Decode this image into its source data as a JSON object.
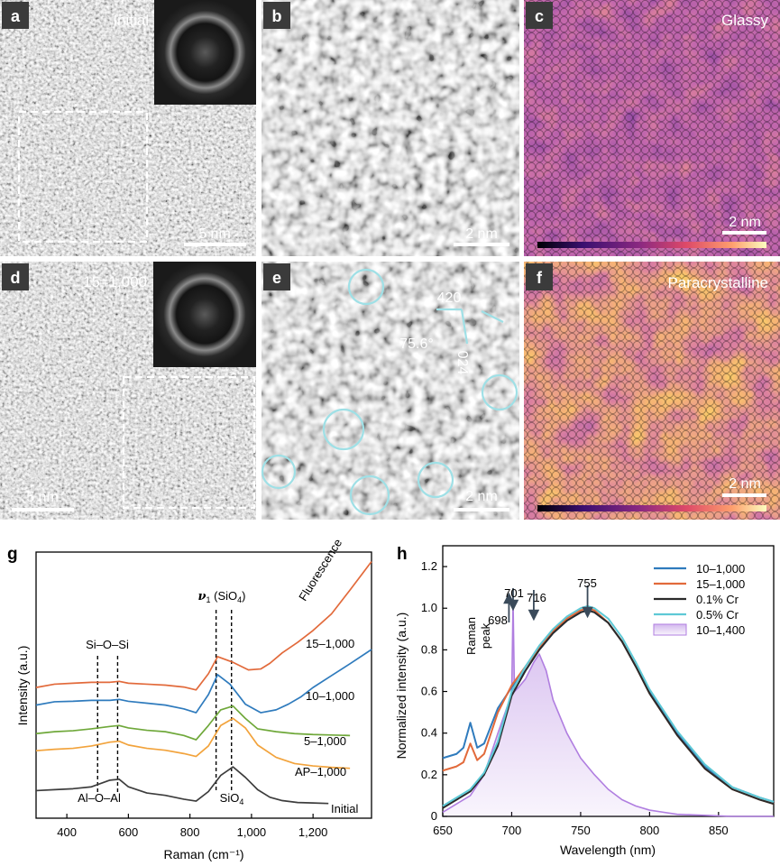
{
  "panels": {
    "a": {
      "letter": "a",
      "caption": "Initial",
      "scale": "5 nm"
    },
    "b": {
      "letter": "b",
      "scale": "2 nm"
    },
    "c": {
      "letter": "c",
      "caption": "Glassy",
      "scale": "2 nm"
    },
    "d": {
      "letter": "d",
      "caption": "15–1,000",
      "scale": "5 nm"
    },
    "e": {
      "letter": "e",
      "scale": "2 nm",
      "miller_a": "420",
      "miller_b": "024",
      "angle": "75.6°"
    },
    "f": {
      "letter": "f",
      "caption": "Paracrystalline",
      "scale": "2 nm"
    }
  },
  "colors": {
    "inferno_low": "#1a0b30",
    "inferno_mid": "#b5366a",
    "inferno_high": "#f6e65a",
    "cyan_circle": "#9fe0e6"
  },
  "chart_data": [
    {
      "panel": "g",
      "type": "line",
      "xlabel": "Raman (cm⁻¹)",
      "ylabel": "Intensity (a.u.)",
      "xlim": [
        300,
        1390
      ],
      "xticks": [
        400,
        600,
        800,
        1000,
        1200
      ],
      "xtick_labels": [
        "400",
        "600",
        "800",
        "1,000",
        "1,200"
      ],
      "annotations": {
        "si_o_si": "Si–O–Si",
        "al_o_al": "Al–O–Al",
        "v1_nu": "ν",
        "v1_sub": "1",
        "v1_rest": " (SiO",
        "v1_sub4": "4",
        "v1_close": ")",
        "sio4_main": "SiO",
        "sio4_sub": "4",
        "fluorescence": "Fluorescence"
      },
      "dashed_lines_x": [
        500,
        565,
        885,
        935
      ],
      "series": [
        {
          "name": "Initial",
          "color": "#3d3d3d",
          "x": [
            300,
            360,
            420,
            480,
            540,
            570,
            600,
            660,
            720,
            780,
            820,
            860,
            900,
            940,
            980,
            1020,
            1060,
            1100,
            1150,
            1200,
            1250
          ],
          "y": [
            0.58,
            0.6,
            0.62,
            0.66,
            0.8,
            0.82,
            0.66,
            0.53,
            0.48,
            0.4,
            0.36,
            0.56,
            0.9,
            1.08,
            0.86,
            0.6,
            0.44,
            0.37,
            0.33,
            0.32,
            0.31
          ]
        },
        {
          "name": "AP–1,000",
          "color": "#f2a33c",
          "x": [
            300,
            360,
            420,
            480,
            540,
            570,
            600,
            660,
            720,
            780,
            820,
            860,
            900,
            940,
            980,
            1020,
            1080,
            1140,
            1200,
            1260,
            1320
          ],
          "y": [
            1.42,
            1.45,
            1.47,
            1.52,
            1.6,
            1.62,
            1.54,
            1.47,
            1.43,
            1.36,
            1.3,
            1.52,
            1.95,
            2.1,
            1.9,
            1.54,
            1.28,
            1.15,
            1.1,
            1.07,
            1.05
          ]
        },
        {
          "name": "5–1,000",
          "color": "#6fa83a",
          "x": [
            300,
            360,
            420,
            480,
            540,
            570,
            600,
            660,
            720,
            780,
            820,
            860,
            900,
            940,
            980,
            1020,
            1080,
            1140,
            1200,
            1260,
            1320
          ],
          "y": [
            1.78,
            1.82,
            1.84,
            1.88,
            1.93,
            1.95,
            1.9,
            1.85,
            1.82,
            1.74,
            1.65,
            1.95,
            2.28,
            2.36,
            2.1,
            1.88,
            1.82,
            1.78,
            1.76,
            1.75,
            1.74
          ]
        },
        {
          "name": "10–1,000",
          "color": "#2f7bbd",
          "x": [
            300,
            360,
            420,
            480,
            540,
            570,
            600,
            660,
            720,
            780,
            820,
            860,
            890,
            930,
            980,
            1030,
            1080,
            1120,
            1160,
            1200,
            1260,
            1320,
            1390
          ],
          "y": [
            2.38,
            2.45,
            2.46,
            2.48,
            2.48,
            2.5,
            2.46,
            2.42,
            2.38,
            2.3,
            2.22,
            2.6,
            3.02,
            2.82,
            2.4,
            2.22,
            2.28,
            2.4,
            2.55,
            2.75,
            3.0,
            3.25,
            3.55
          ]
        },
        {
          "name": "15–1,000",
          "color": "#e26a3b",
          "x": [
            300,
            360,
            420,
            480,
            540,
            570,
            600,
            660,
            720,
            780,
            820,
            860,
            890,
            940,
            990,
            1030,
            1060,
            1100,
            1150,
            1200,
            1260,
            1320,
            1390
          ],
          "y": [
            2.75,
            2.82,
            2.84,
            2.86,
            2.86,
            2.88,
            2.84,
            2.82,
            2.8,
            2.76,
            2.7,
            3.04,
            3.4,
            3.28,
            3.12,
            3.14,
            3.26,
            3.48,
            3.7,
            3.95,
            4.3,
            4.8,
            5.4
          ]
        }
      ]
    },
    {
      "panel": "h",
      "type": "line",
      "xlabel": "Wavelength (nm)",
      "ylabel": "Normalized intensity (a.u.)",
      "xlim": [
        650,
        890
      ],
      "ylim": [
        0,
        1.3
      ],
      "xticks": [
        650,
        700,
        750,
        800,
        850
      ],
      "yticks": [
        0,
        0.2,
        0.4,
        0.6,
        0.8,
        1.0,
        1.2
      ],
      "ytick_labels": [
        "0",
        "0.2",
        "0.4",
        "0.6",
        "0.8",
        "1.0",
        "1.2"
      ],
      "annotations": {
        "raman_line1": "Raman",
        "raman_line2": "peak",
        "p698": "698",
        "p701": "701",
        "p716": "716",
        "p755": "755"
      },
      "arrows_at": [
        698,
        701,
        716,
        755
      ],
      "series": [
        {
          "name": "10–1,000",
          "color": "#2f7bbd",
          "x": [
            650,
            660,
            665,
            670,
            675,
            680,
            690,
            700,
            710,
            720,
            730,
            740,
            750,
            755,
            760,
            770,
            780,
            790,
            800,
            820,
            840,
            860,
            880,
            890
          ],
          "y": [
            0.28,
            0.3,
            0.33,
            0.45,
            0.33,
            0.35,
            0.52,
            0.62,
            0.7,
            0.8,
            0.88,
            0.94,
            0.98,
            0.99,
            0.98,
            0.93,
            0.84,
            0.72,
            0.6,
            0.4,
            0.24,
            0.14,
            0.09,
            0.07
          ]
        },
        {
          "name": "15–1,000",
          "color": "#e26a3b",
          "x": [
            650,
            660,
            665,
            670,
            675,
            680,
            690,
            700,
            710,
            720,
            730,
            740,
            750,
            755,
            760,
            770,
            780,
            790,
            800,
            820,
            840,
            860,
            880,
            890
          ],
          "y": [
            0.22,
            0.24,
            0.26,
            0.35,
            0.27,
            0.3,
            0.5,
            0.63,
            0.72,
            0.81,
            0.89,
            0.95,
            0.99,
            1.0,
            0.99,
            0.93,
            0.84,
            0.72,
            0.59,
            0.39,
            0.23,
            0.13,
            0.08,
            0.06
          ]
        },
        {
          "name": "0.1% Cr",
          "color": "#2a2a2a",
          "x": [
            650,
            670,
            680,
            690,
            700,
            710,
            720,
            730,
            740,
            750,
            755,
            760,
            770,
            780,
            790,
            800,
            820,
            840,
            860,
            880,
            890
          ],
          "y": [
            0.04,
            0.12,
            0.2,
            0.34,
            0.58,
            0.7,
            0.8,
            0.88,
            0.94,
            0.98,
            0.99,
            0.98,
            0.93,
            0.84,
            0.72,
            0.59,
            0.39,
            0.23,
            0.13,
            0.08,
            0.06
          ]
        },
        {
          "name": "0.5% Cr",
          "color": "#5ec9d6",
          "x": [
            650,
            670,
            680,
            690,
            700,
            710,
            720,
            730,
            740,
            750,
            755,
            760,
            770,
            780,
            790,
            800,
            820,
            840,
            860,
            880,
            890
          ],
          "y": [
            0.05,
            0.13,
            0.21,
            0.36,
            0.6,
            0.72,
            0.82,
            0.9,
            0.96,
            1.0,
            1.01,
            1.0,
            0.95,
            0.86,
            0.74,
            0.61,
            0.41,
            0.25,
            0.14,
            0.09,
            0.07
          ]
        },
        {
          "name": "10–1,400",
          "color": "#b07ee0",
          "fill": true,
          "x": [
            650,
            670,
            680,
            690,
            698,
            700,
            701,
            702,
            705,
            710,
            716,
            720,
            725,
            730,
            740,
            750,
            760,
            770,
            780,
            790,
            800,
            810,
            820,
            840,
            860,
            890
          ],
          "y": [
            0.02,
            0.1,
            0.2,
            0.4,
            0.55,
            0.58,
            1.03,
            0.6,
            0.62,
            0.66,
            0.74,
            0.78,
            0.7,
            0.56,
            0.4,
            0.28,
            0.2,
            0.13,
            0.08,
            0.05,
            0.03,
            0.02,
            0.01,
            0.005,
            0,
            0
          ]
        }
      ]
    }
  ]
}
